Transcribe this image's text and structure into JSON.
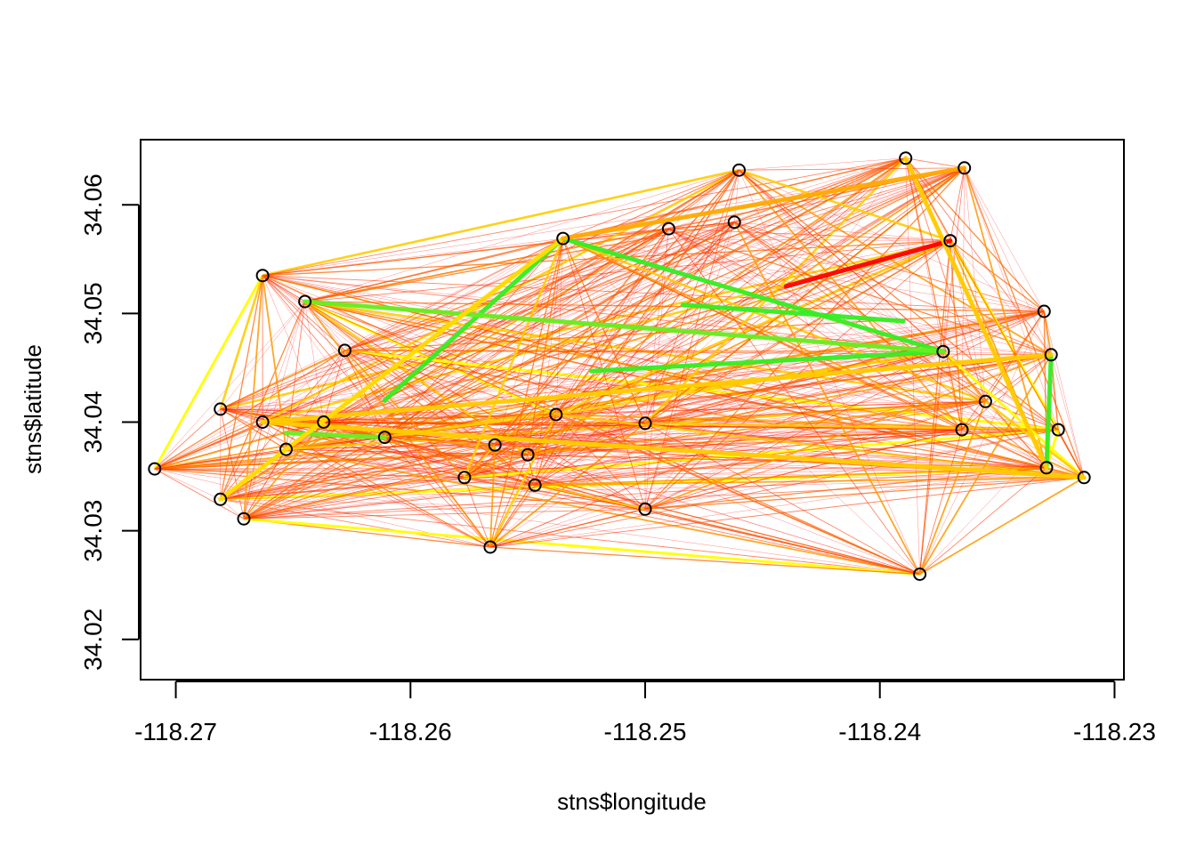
{
  "chart_data": {
    "type": "scatter",
    "title": "",
    "xlabel": "stns$longitude",
    "ylabel": "stns$latitude",
    "xlim": [
      -118.2715,
      -118.2296
    ],
    "ylim": [
      34.0163,
      34.066
    ],
    "x_ticks": [
      -118.27,
      -118.26,
      -118.25,
      -118.24,
      -118.23
    ],
    "x_tick_labels": [
      "-118.27",
      "-118.26",
      "-118.25",
      "-118.24",
      "-118.23"
    ],
    "y_ticks": [
      34.02,
      34.03,
      34.04,
      34.05,
      34.06
    ],
    "y_tick_labels": [
      "34.02",
      "34.03",
      "34.04",
      "34.05",
      "34.06"
    ],
    "grid": false,
    "legend": "none",
    "marker": "open-circle",
    "marker_color": "#000000",
    "edge_colors": [
      "#ff0000",
      "#ff3300",
      "#ff6600",
      "#ff9900",
      "#ffcc00",
      "#ffff00",
      "#33ee22"
    ],
    "stations": [
      {
        "x": -118.2709,
        "y": 34.0357
      },
      {
        "x": -118.2681,
        "y": 34.0412
      },
      {
        "x": -118.2681,
        "y": 34.0329
      },
      {
        "x": -118.2671,
        "y": 34.0311
      },
      {
        "x": -118.2663,
        "y": 34.0535
      },
      {
        "x": -118.2663,
        "y": 34.04
      },
      {
        "x": -118.2653,
        "y": 34.0375
      },
      {
        "x": -118.2645,
        "y": 34.0511
      },
      {
        "x": -118.2637,
        "y": 34.04
      },
      {
        "x": -118.2628,
        "y": 34.0466
      },
      {
        "x": -118.2611,
        "y": 34.0386
      },
      {
        "x": -118.2577,
        "y": 34.0349
      },
      {
        "x": -118.2566,
        "y": 34.0285
      },
      {
        "x": -118.2564,
        "y": 34.0379
      },
      {
        "x": -118.255,
        "y": 34.037
      },
      {
        "x": -118.2547,
        "y": 34.0342
      },
      {
        "x": -118.2538,
        "y": 34.0407
      },
      {
        "x": -118.2535,
        "y": 34.0569
      },
      {
        "x": -118.25,
        "y": 34.032
      },
      {
        "x": -118.25,
        "y": 34.0399
      },
      {
        "x": -118.249,
        "y": 34.0578
      },
      {
        "x": -118.246,
        "y": 34.0632
      },
      {
        "x": -118.2462,
        "y": 34.0584
      },
      {
        "x": -118.2389,
        "y": 34.0643
      },
      {
        "x": -118.2383,
        "y": 34.026
      },
      {
        "x": -118.237,
        "y": 34.0567
      },
      {
        "x": -118.2364,
        "y": 34.0634
      },
      {
        "x": -118.2365,
        "y": 34.0393
      },
      {
        "x": -118.233,
        "y": 34.0502
      },
      {
        "x": -118.2327,
        "y": 34.0462
      },
      {
        "x": -118.2329,
        "y": 34.0358
      },
      {
        "x": -118.2324,
        "y": 34.0393
      },
      {
        "x": -118.2313,
        "y": 34.0349
      },
      {
        "x": -118.2373,
        "y": 34.0465
      },
      {
        "x": -118.2355,
        "y": 34.0419
      }
    ],
    "heavy_edges": [
      {
        "from": [
          -118.2535,
          34.0569
        ],
        "to": [
          -118.2373,
          34.0465
        ],
        "color": "#33ee22"
      },
      {
        "from": [
          -118.2535,
          34.0569
        ],
        "to": [
          -118.2611,
          34.042
        ],
        "color": "#33ee22"
      },
      {
        "from": [
          -118.2484,
          34.0508
        ],
        "to": [
          -118.239,
          34.0493
        ],
        "color": "#33ee22"
      },
      {
        "from": [
          -118.2523,
          34.0447
        ],
        "to": [
          -118.2373,
          34.0465
        ],
        "color": "#33ee22"
      },
      {
        "from": [
          -118.2645,
          34.0511
        ],
        "to": [
          -118.2373,
          34.0465
        ],
        "color": "#66ee22"
      },
      {
        "from": [
          -118.2653,
          34.039
        ],
        "to": [
          -118.2611,
          34.0386
        ],
        "color": "#66ee22"
      },
      {
        "from": [
          -118.2327,
          34.0462
        ],
        "to": [
          -118.2329,
          34.0358
        ],
        "color": "#33ee22"
      },
      {
        "from": [
          -118.244,
          34.0525
        ],
        "to": [
          -118.237,
          34.0567
        ],
        "color": "#ff0000"
      },
      {
        "from": [
          -118.2663,
          34.04
        ],
        "to": [
          -118.2313,
          34.0349
        ],
        "color": "#ffcc00"
      },
      {
        "from": [
          -118.2663,
          34.04
        ],
        "to": [
          -118.2327,
          34.0462
        ],
        "color": "#ffcc00"
      },
      {
        "from": [
          -118.2681,
          34.0329
        ],
        "to": [
          -118.2535,
          34.0569
        ],
        "color": "#ffdd00"
      },
      {
        "from": [
          -118.2389,
          34.0643
        ],
        "to": [
          -118.2329,
          34.0358
        ],
        "color": "#ffcc00"
      },
      {
        "from": [
          -118.2364,
          34.0634
        ],
        "to": [
          -118.2535,
          34.0569
        ],
        "color": "#ffaa00"
      }
    ]
  }
}
